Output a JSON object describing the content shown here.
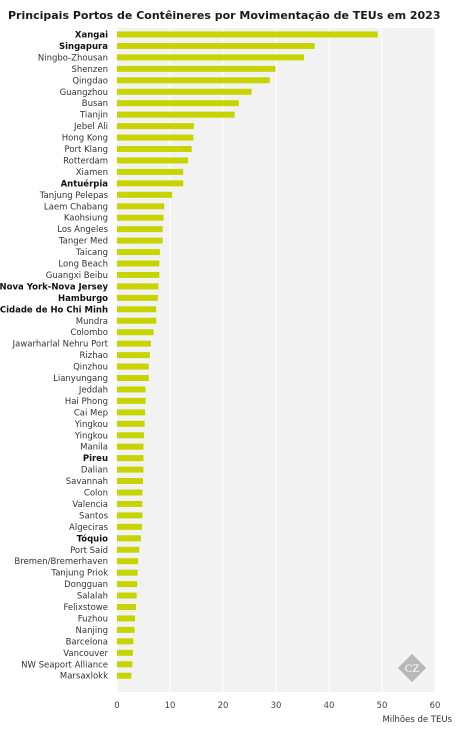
{
  "chart_data": {
    "type": "bar",
    "orientation": "horizontal",
    "title": "Principais Portos de Contêineres por Movimentação de TEUs em 2023",
    "xlabel": "Milhões de  TEUs",
    "ylabel": "",
    "xlim": [
      0,
      60
    ],
    "xticks": [
      0,
      10,
      20,
      30,
      40,
      50,
      60
    ],
    "grid": true,
    "bar_color": "#c8d400",
    "plot_background": "#f2f2f2",
    "watermark": "CZ",
    "categories": [
      "Xangai",
      "Singapura",
      "Ningbo-Zhousan",
      "Shenzen",
      "Qingdao",
      "Guangzhou",
      "Busan",
      "Tianjin",
      "Jebel Ali",
      "Hong Kong",
      "Port Klang",
      "Rotterdam",
      "Xiamen",
      "Antuérpia",
      "Tanjung Pelepas",
      "Laem Chabang",
      "Kaohsiung",
      "Los Angeles",
      "Tanger Med",
      "Taicang",
      "Long Beach",
      "Guangxi Beibu",
      "Nova York-Nova Jersey",
      "Hamburgo",
      "Cidade de Ho Chi Minh",
      "Mundra",
      "Colombo",
      "Jawarharlal Nehru Port",
      "Rizhao",
      "Qinzhou",
      "Lianyungang",
      "Jeddah",
      "Hai Phong",
      "Cai Mep",
      "Yingkou",
      "Yingkou",
      "Manila",
      "Pireu",
      "Dalian",
      "Savannah",
      "Colon",
      "Valencia",
      "Santos",
      "Algeciras",
      "Tóquio",
      "Port Said",
      "Bremen/Bremerhaven",
      "Tanjung Priok",
      "Dongguan",
      "Salalah",
      "Felixstowe",
      "Fuzhou",
      "Nanjing",
      "Barcelona",
      "Vancouver",
      "NW Seaport Alliance",
      "Marsaxlokk"
    ],
    "bold_categories": [
      "Xangai",
      "Singapura",
      "Antuérpia",
      "Nova York-Nova Jersey",
      "Hamburgo",
      "Cidade de Ho Chi Minh",
      "Pireu",
      "Tóquio"
    ],
    "values": [
      49.2,
      37.3,
      35.3,
      29.9,
      28.8,
      25.4,
      23.0,
      22.2,
      14.5,
      14.4,
      14.1,
      13.4,
      12.5,
      12.5,
      10.4,
      8.9,
      8.8,
      8.6,
      8.6,
      8.1,
      8.0,
      8.0,
      7.8,
      7.7,
      7.4,
      7.4,
      6.9,
      6.4,
      6.2,
      6.0,
      6.0,
      5.4,
      5.4,
      5.3,
      5.2,
      5.1,
      5.0,
      5.0,
      5.0,
      4.9,
      4.8,
      4.8,
      4.8,
      4.7,
      4.5,
      4.2,
      4.0,
      3.9,
      3.8,
      3.7,
      3.6,
      3.4,
      3.3,
      3.1,
      3.0,
      2.9,
      2.7
    ]
  }
}
